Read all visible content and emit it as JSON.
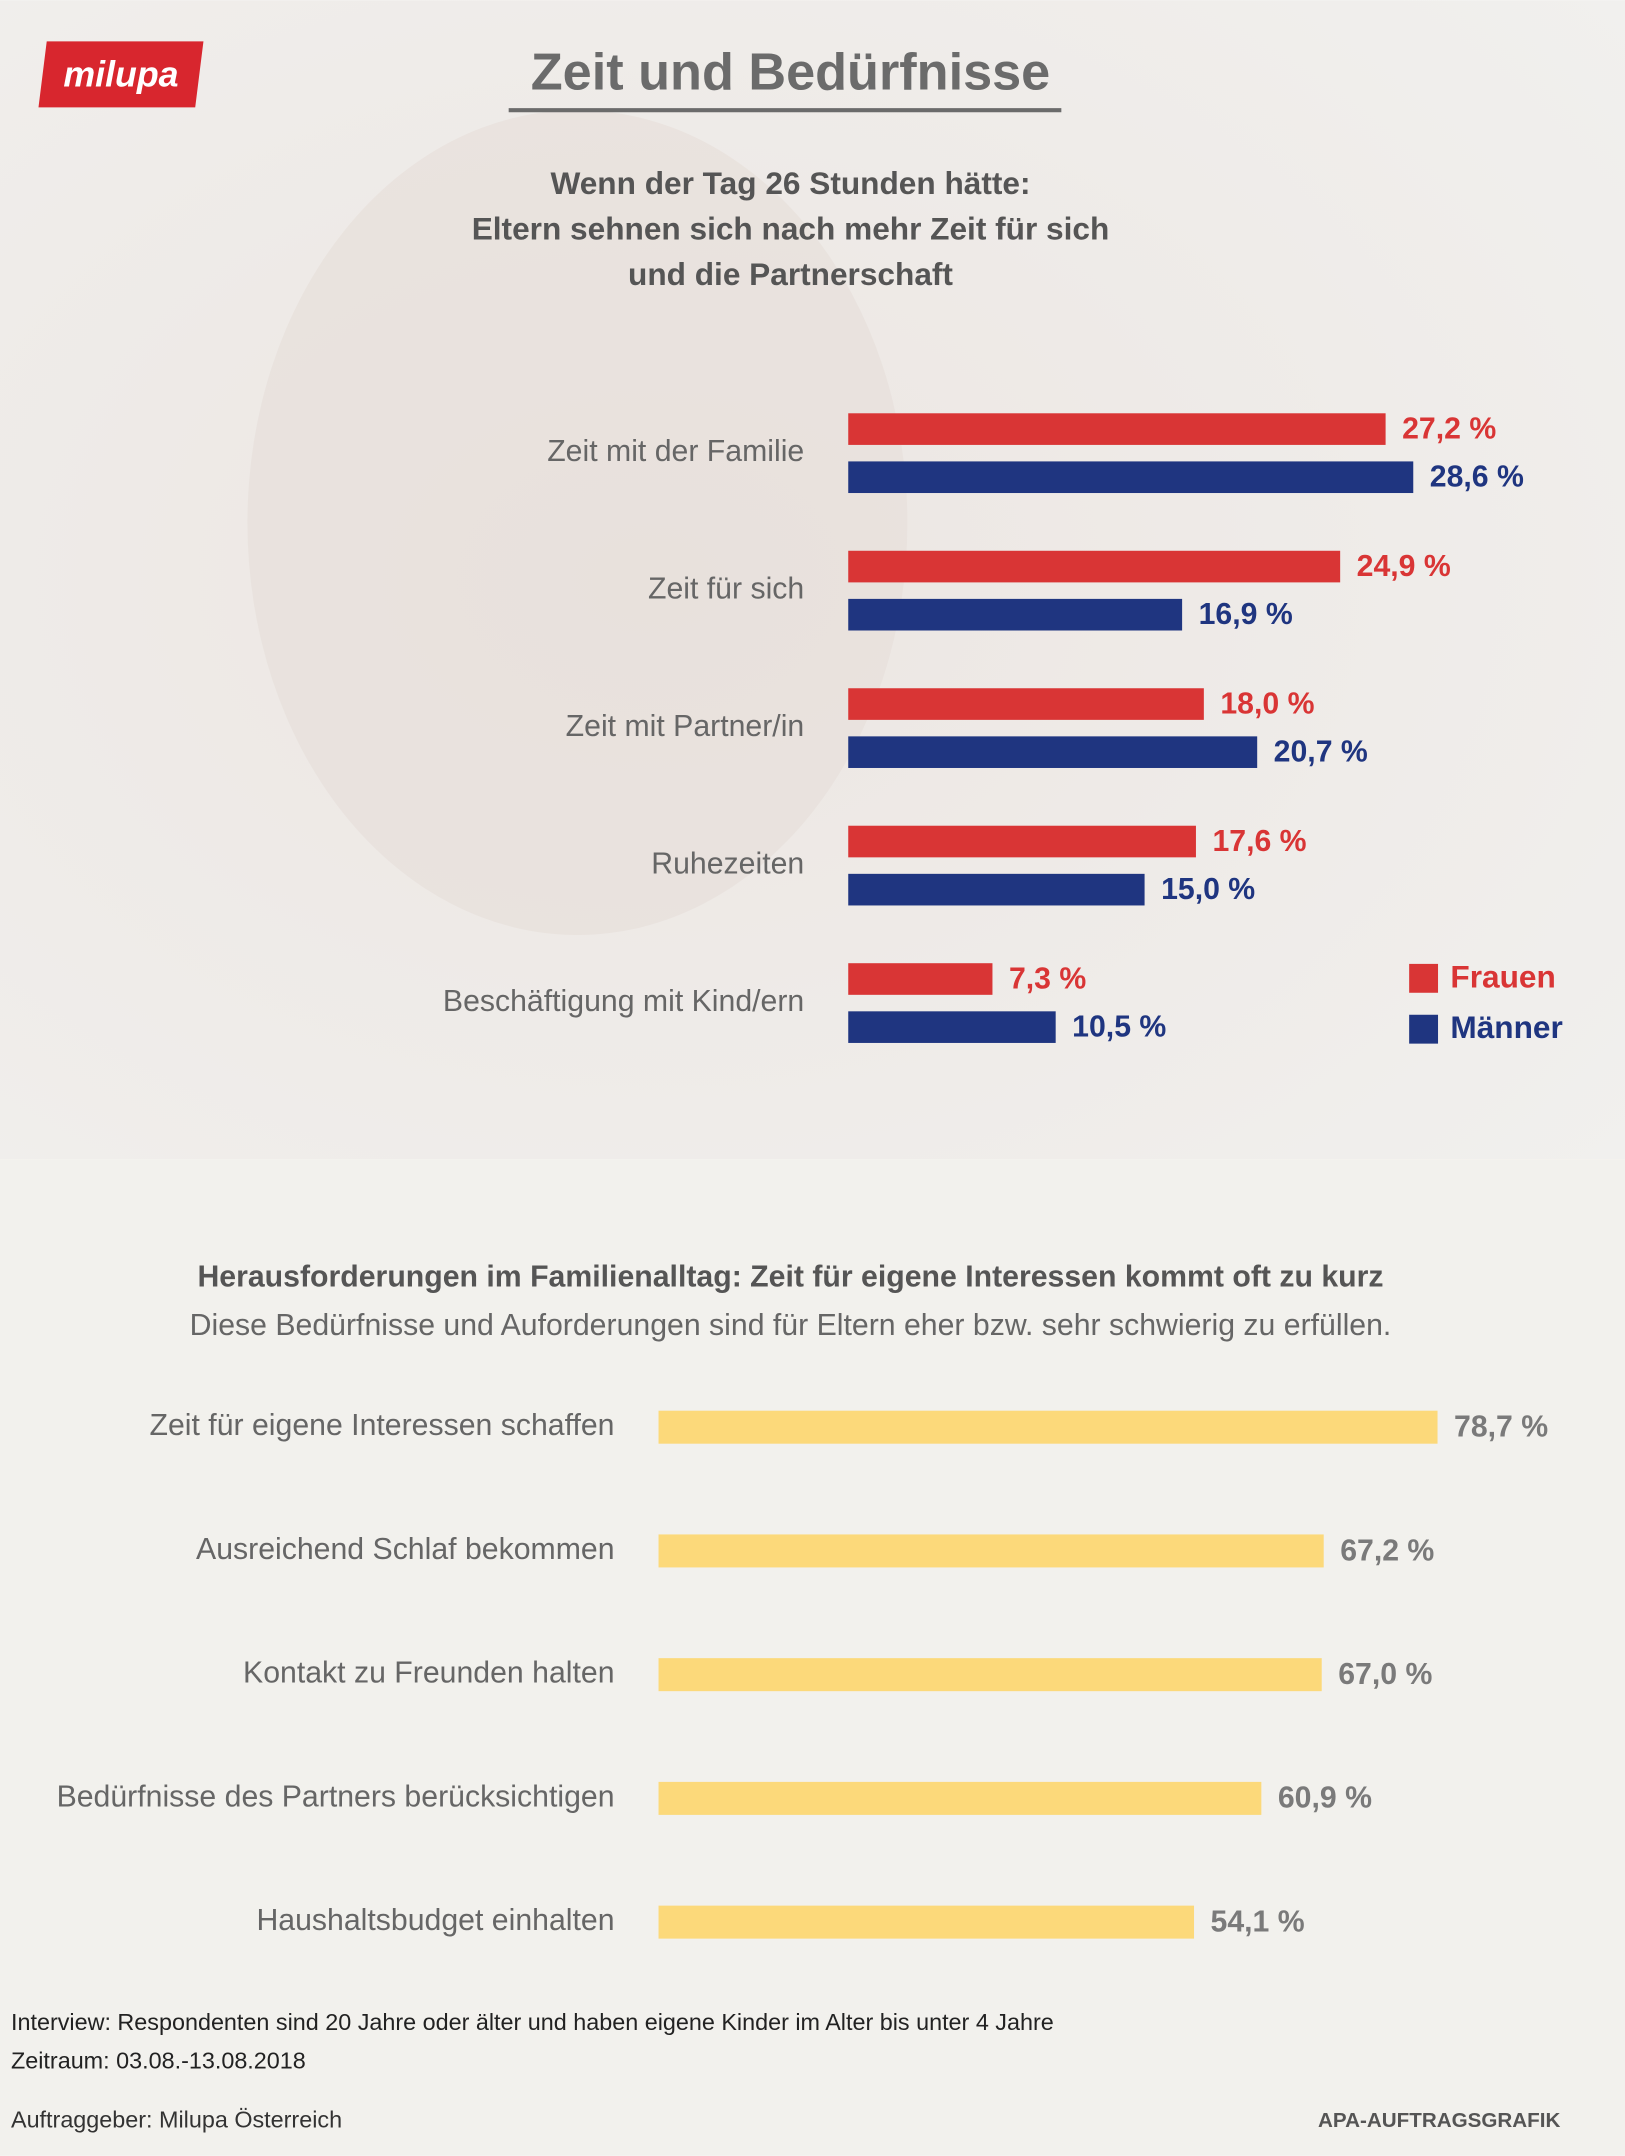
{
  "header": {
    "logo": "milupa",
    "title": "Zeit und Bedürfnisse"
  },
  "chart_data": [
    {
      "type": "hbar",
      "title": [
        "Wenn der Tag 26 Stunden hätte:",
        "Eltern sehnen sich nach mehr Zeit für sich",
        "und die Partnerschaft"
      ],
      "categories": [
        "Zeit mit der Familie",
        "Zeit für sich",
        "Zeit mit Partner/in",
        "Ruhezeiten",
        "Beschäftigung mit Kind/ern"
      ],
      "series": [
        {
          "name": "Frauen",
          "color": "#d93535",
          "values": [
            27.2,
            24.9,
            18.0,
            17.6,
            7.3
          ],
          "value_labels": [
            "27,2 %",
            "24,9 %",
            "18,0 %",
            "17,6 %",
            "7,3 %"
          ]
        },
        {
          "name": "Männer",
          "color": "#1f3580",
          "values": [
            28.6,
            16.9,
            20.7,
            15.0,
            10.5
          ],
          "value_labels": [
            "28,6 %",
            "16,9 %",
            "20,7 %",
            "15,0 %",
            "10,5 %"
          ]
        }
      ],
      "legend": "bottom-right"
    },
    {
      "type": "hbar",
      "title": [
        "Herausforderungen im Familienalltag: Zeit für eigene Interessen kommt oft zu kurz"
      ],
      "subtitle": "Diese Bedürfnisse und Auforderungen sind für Eltern eher bzw. sehr schwierig zu erfüllen.",
      "categories": [
        "Zeit für eigene Interessen schaffen",
        "Ausreichend Schlaf bekommen",
        "Kontakt zu Freunden halten",
        "Bedürfnisse des Partners berücksichtigen",
        "Haushaltsbudget einhalten"
      ],
      "series": [
        {
          "color": "#fcd97a",
          "values": [
            78.7,
            67.2,
            67.0,
            60.9,
            54.1
          ],
          "value_labels": [
            "78,7 %",
            "67,2 %",
            "67,0 %",
            "60,9 %",
            "54,1 %"
          ]
        }
      ]
    }
  ],
  "footer": {
    "notes": [
      "Interview: Respondenten sind 20 Jahre oder älter und haben eigene Kinder im Alter bis unter 4 Jahre",
      "Zeitraum: 03.08.-13.08.2018"
    ],
    "client": "Auftraggeber: Milupa Österreich",
    "credit": "APA-AUFTRAGSGRAFIK"
  }
}
